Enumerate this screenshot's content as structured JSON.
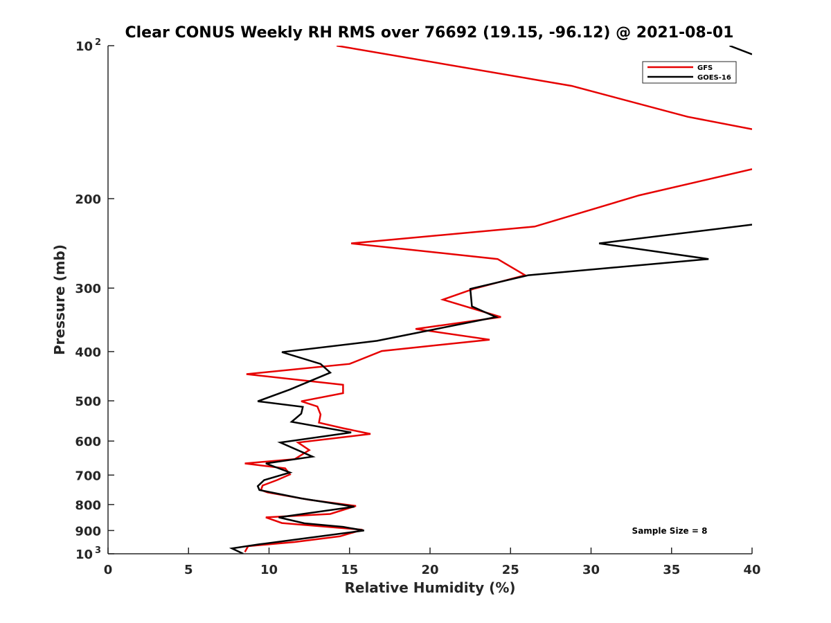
{
  "chart_data": {
    "type": "line",
    "title": "Clear CONUS Weekly RH RMS over 76692 (19.15, -96.12) @ 2021-08-01",
    "xlabel": "Relative Humidity (%)",
    "ylabel": "Pressure (mb)",
    "xlim": [
      0,
      40
    ],
    "ylim": [
      100,
      1000
    ],
    "yscale": "log",
    "y_reversed": true,
    "x_ticks": [
      "0",
      "5",
      "10",
      "15",
      "20",
      "25",
      "30",
      "35",
      "40"
    ],
    "y_ticks": [
      {
        "value": 100,
        "label": "10",
        "sup": "2"
      },
      {
        "value": 200,
        "label": "200"
      },
      {
        "value": 300,
        "label": "300"
      },
      {
        "value": 400,
        "label": "400"
      },
      {
        "value": 500,
        "label": "500"
      },
      {
        "value": 600,
        "label": "600"
      },
      {
        "value": 700,
        "label": "700"
      },
      {
        "value": 800,
        "label": "800"
      },
      {
        "value": 900,
        "label": "900"
      },
      {
        "value": 1000,
        "label": "10",
        "sup": "3"
      }
    ],
    "legend_position": "top-right",
    "grid": false,
    "annotation": "Sample Size = 8",
    "series": [
      {
        "name": "GFS",
        "color": "#e60000",
        "segments": [
          [
            [
              14.2,
              100
            ],
            [
              28.8,
              120
            ],
            [
              36,
              138
            ],
            [
              40,
              146
            ]
          ],
          [
            [
              40,
              175
            ],
            [
              33,
              197
            ],
            [
              26.5,
              227
            ],
            [
              15.1,
              245
            ],
            [
              24.2,
              263
            ],
            [
              25.9,
              283
            ],
            [
              22.7,
              301
            ],
            [
              20.8,
              316
            ],
            [
              24.4,
              342
            ],
            [
              19.1,
              361
            ],
            [
              23.7,
              379
            ],
            [
              17,
              399
            ],
            [
              15,
              423
            ],
            [
              8.6,
              443
            ],
            [
              14.6,
              465
            ],
            [
              14.6,
              483
            ],
            [
              12,
              501
            ],
            [
              13,
              513
            ],
            [
              13.2,
              532
            ],
            [
              13.1,
              552
            ],
            [
              14.6,
              566
            ],
            [
              16.3,
              581
            ],
            [
              11.8,
              604
            ],
            [
              12.5,
              625
            ],
            [
              11.6,
              651
            ],
            [
              8.5,
              664
            ],
            [
              11,
              679
            ],
            [
              11.3,
              698
            ],
            [
              10.5,
              716
            ],
            [
              9.6,
              734
            ],
            [
              9.5,
              749
            ],
            [
              9.9,
              757
            ],
            [
              12.5,
              783
            ],
            [
              15.4,
              805
            ],
            [
              13.8,
              835
            ],
            [
              9.8,
              848
            ],
            [
              10.8,
              870
            ],
            [
              15.8,
              897
            ],
            [
              14.4,
              924
            ],
            [
              11.6,
              948
            ],
            [
              8.7,
              966
            ],
            [
              8.5,
              992
            ]
          ]
        ]
      },
      {
        "name": "GOES-16",
        "color": "#000000",
        "segments": [
          [
            [
              38.6,
              100
            ],
            [
              40,
              104
            ]
          ],
          [
            [
              40,
              225
            ],
            [
              30.5,
              245
            ],
            [
              37.3,
              263
            ],
            [
              26.1,
              283
            ],
            [
              22.5,
              301
            ],
            [
              22.6,
              326
            ],
            [
              24.1,
              342
            ],
            [
              16.7,
              381
            ],
            [
              10.8,
              401
            ],
            [
              13.2,
              423
            ],
            [
              13.8,
              440
            ],
            [
              11.3,
              475
            ],
            [
              9.3,
              501
            ],
            [
              12.1,
              514
            ],
            [
              12,
              530
            ],
            [
              11.4,
              550
            ],
            [
              15.1,
              577
            ],
            [
              10.7,
              604
            ],
            [
              12.7,
              644
            ],
            [
              9.8,
              664
            ],
            [
              11.3,
              692
            ],
            [
              9.7,
              716
            ],
            [
              9.3,
              736
            ],
            [
              9.4,
              749
            ],
            [
              12,
              778
            ],
            [
              15.3,
              808
            ],
            [
              10.6,
              848
            ],
            [
              12.2,
              871
            ],
            [
              14.6,
              885
            ],
            [
              15.9,
              900
            ],
            [
              12.5,
              930
            ],
            [
              9.4,
              958
            ],
            [
              7.7,
              976
            ],
            [
              8.4,
              1000
            ]
          ]
        ]
      }
    ]
  }
}
